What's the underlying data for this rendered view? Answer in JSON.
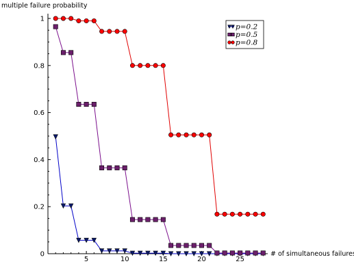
{
  "chart_data": {
    "type": "line",
    "title": "",
    "xlabel": "# of simultaneous failures",
    "ylabel": "multiple failure probability",
    "xlim": [
      0,
      28.6
    ],
    "ylim": [
      0,
      1.0
    ],
    "x_ticks": [
      5,
      10,
      15,
      20,
      25
    ],
    "y_ticks": [
      0,
      0.2,
      0.4,
      0.6,
      0.8,
      1
    ],
    "x_tick_labels": [
      "5",
      "10",
      "15",
      "20",
      "25"
    ],
    "y_tick_labels": [
      "0",
      "0.2",
      "0.4",
      "0.6",
      "0.8",
      "1"
    ],
    "grid": false,
    "legend_position": "top-right",
    "x": [
      1,
      2,
      3,
      4,
      5,
      6,
      7,
      8,
      9,
      10,
      11,
      12,
      13,
      14,
      15,
      16,
      17,
      18,
      19,
      20,
      21,
      22,
      23,
      24,
      25,
      26,
      27,
      28
    ],
    "series": [
      {
        "name": "p=0.2",
        "label_var": "p",
        "label_eq": "=0.2",
        "color": "#0000c8",
        "marker": "triangle-down",
        "marker_fill": "#0a1a6e",
        "values": [
          0.497,
          0.203,
          0.203,
          0.057,
          0.057,
          0.057,
          0.012,
          0.012,
          0.012,
          0.012,
          0.002,
          0.002,
          0.002,
          0.002,
          0.002,
          0.0,
          0.0,
          0.0,
          0.0,
          0.0,
          0.0,
          0.0,
          0.0,
          0.0,
          0.0,
          0.0,
          0.0,
          0.0
        ]
      },
      {
        "name": "p=0.5",
        "label_var": "p",
        "label_eq": "=0.5",
        "color": "#7b0f8c",
        "marker": "square",
        "marker_fill": "#6b1f6b",
        "values": [
          0.965,
          0.855,
          0.855,
          0.635,
          0.635,
          0.635,
          0.365,
          0.365,
          0.365,
          0.365,
          0.145,
          0.145,
          0.145,
          0.145,
          0.145,
          0.035,
          0.035,
          0.035,
          0.035,
          0.035,
          0.035,
          0.003,
          0.003,
          0.003,
          0.003,
          0.003,
          0.003,
          0.003
        ]
      },
      {
        "name": "p=0.8",
        "label_var": "p",
        "label_eq": "=0.8",
        "color": "#e00000",
        "marker": "circle",
        "marker_fill": "#ff0000",
        "values": [
          1.0,
          1.0,
          1.0,
          0.99,
          0.99,
          0.99,
          0.945,
          0.945,
          0.945,
          0.945,
          0.8,
          0.8,
          0.8,
          0.8,
          0.8,
          0.505,
          0.505,
          0.505,
          0.505,
          0.505,
          0.505,
          0.168,
          0.168,
          0.168,
          0.168,
          0.168,
          0.168,
          0.168
        ]
      }
    ]
  }
}
